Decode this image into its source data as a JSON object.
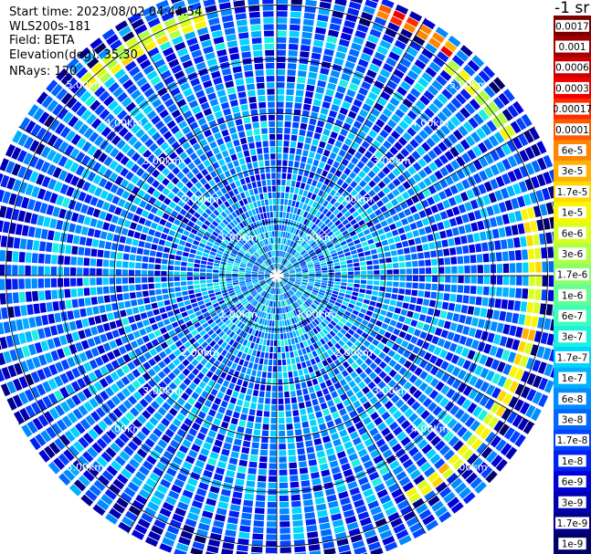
{
  "header": {
    "start_time": "Start time: 2023/08/02 04:44:54",
    "instrument": "WLS200s-181",
    "field": "Field: BETA",
    "elevation": "Elevation(deg): 35.30",
    "nrays": "NRays: 120"
  },
  "colorbar": {
    "unit_label": "-1 sr",
    "entries": [
      {
        "label": "0.0017",
        "color": "#7f0000"
      },
      {
        "label": "0.001",
        "color": "#a50000"
      },
      {
        "label": "0.0006",
        "color": "#cc0000"
      },
      {
        "label": "0.0003",
        "color": "#f20000"
      },
      {
        "label": "0.00017",
        "color": "#ff2a00"
      },
      {
        "label": "0.0001",
        "color": "#ff5a00"
      },
      {
        "label": "6e-5",
        "color": "#ff8400"
      },
      {
        "label": "3e-5",
        "color": "#ffb000"
      },
      {
        "label": "1.7e-5",
        "color": "#ffd800"
      },
      {
        "label": "1e-5",
        "color": "#faf600"
      },
      {
        "label": "6e-6",
        "color": "#d8ff1f"
      },
      {
        "label": "3e-6",
        "color": "#b0ff47"
      },
      {
        "label": "1.7e-6",
        "color": "#8aff6c"
      },
      {
        "label": "1e-6",
        "color": "#62ff94"
      },
      {
        "label": "6e-7",
        "color": "#3cffba"
      },
      {
        "label": "3e-7",
        "color": "#1cf0de"
      },
      {
        "label": "1.7e-7",
        "color": "#00d4ff"
      },
      {
        "label": "1e-7",
        "color": "#00b0ff"
      },
      {
        "label": "6e-8",
        "color": "#008cff"
      },
      {
        "label": "3e-8",
        "color": "#0068ff"
      },
      {
        "label": "1.7e-8",
        "color": "#0044ff"
      },
      {
        "label": "1e-8",
        "color": "#0020f4"
      },
      {
        "label": "6e-9",
        "color": "#0000d8"
      },
      {
        "label": "3e-9",
        "color": "#0000b0"
      },
      {
        "label": "1.7e-9",
        "color": "#00008c"
      },
      {
        "label": "1e-9",
        "color": "#000066"
      }
    ]
  },
  "chart_data": {
    "type": "heatmap",
    "subtype": "polar-ppi",
    "field": "BETA",
    "elevation_deg": 35.3,
    "n_rays": 120,
    "azimuth_range_deg": [
      0,
      360
    ],
    "range_rings_km": [
      1,
      2,
      3,
      4,
      5
    ],
    "ring_labels": [
      "1.00km",
      "2.00km",
      "3.00km",
      "4.00km",
      "5.00km"
    ],
    "max_range_km": 5.5,
    "spoke_interval_deg": 30,
    "value_scale": "log",
    "value_range": [
      1e-09,
      0.0017
    ],
    "typical_value_near_center": 1e-07,
    "typical_value_background": 3e-08,
    "features": [
      {
        "description": "enhanced backscatter arc",
        "azimuth_deg": [
          20,
          40
        ],
        "range_km": [
          5.1,
          5.4
        ],
        "value": 0.0001
      },
      {
        "description": "enhanced backscatter arc",
        "azimuth_deg": [
          40,
          60
        ],
        "range_km": [
          4.9,
          5.2
        ],
        "value": 6e-06
      },
      {
        "description": "enhanced backscatter arc",
        "azimuth_deg": [
          75,
          150
        ],
        "range_km": [
          4.7,
          4.95
        ],
        "value": 1e-05
      },
      {
        "description": "enhanced backscatter arc",
        "azimuth_deg": [
          315,
          345
        ],
        "range_km": [
          4.8,
          5.1
        ],
        "value": 6e-06
      }
    ]
  }
}
